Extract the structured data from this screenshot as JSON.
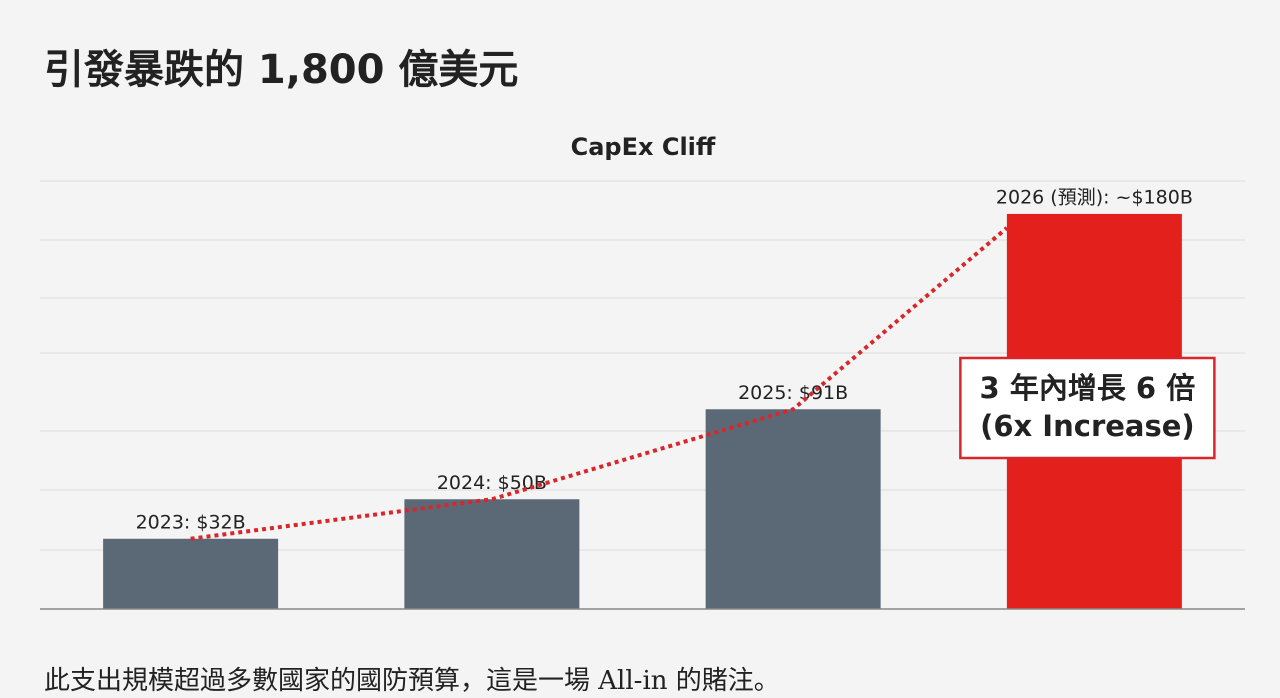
{
  "title": "引發暴跌的 1,800 億美元",
  "chart_data": {
    "type": "bar",
    "title": "CapEx Cliff",
    "values": [
      32,
      50,
      91,
      180
    ],
    "value_labels": [
      "2023: $32B",
      "2024: $50B",
      "2025: $91B",
      "2026 (預測): ~$180B"
    ],
    "colors": [
      "#5b6977",
      "#5b6977",
      "#5b6977",
      "#e3201b"
    ],
    "trend_color": "#d9262b",
    "ylim": [
      0,
      195
    ],
    "annotation": [
      "3 年內增長 6 倍",
      "(6x Increase)"
    ]
  },
  "footer": "此支出規模超過多數國家的國防預算，這是一場 All-in 的賭注。"
}
